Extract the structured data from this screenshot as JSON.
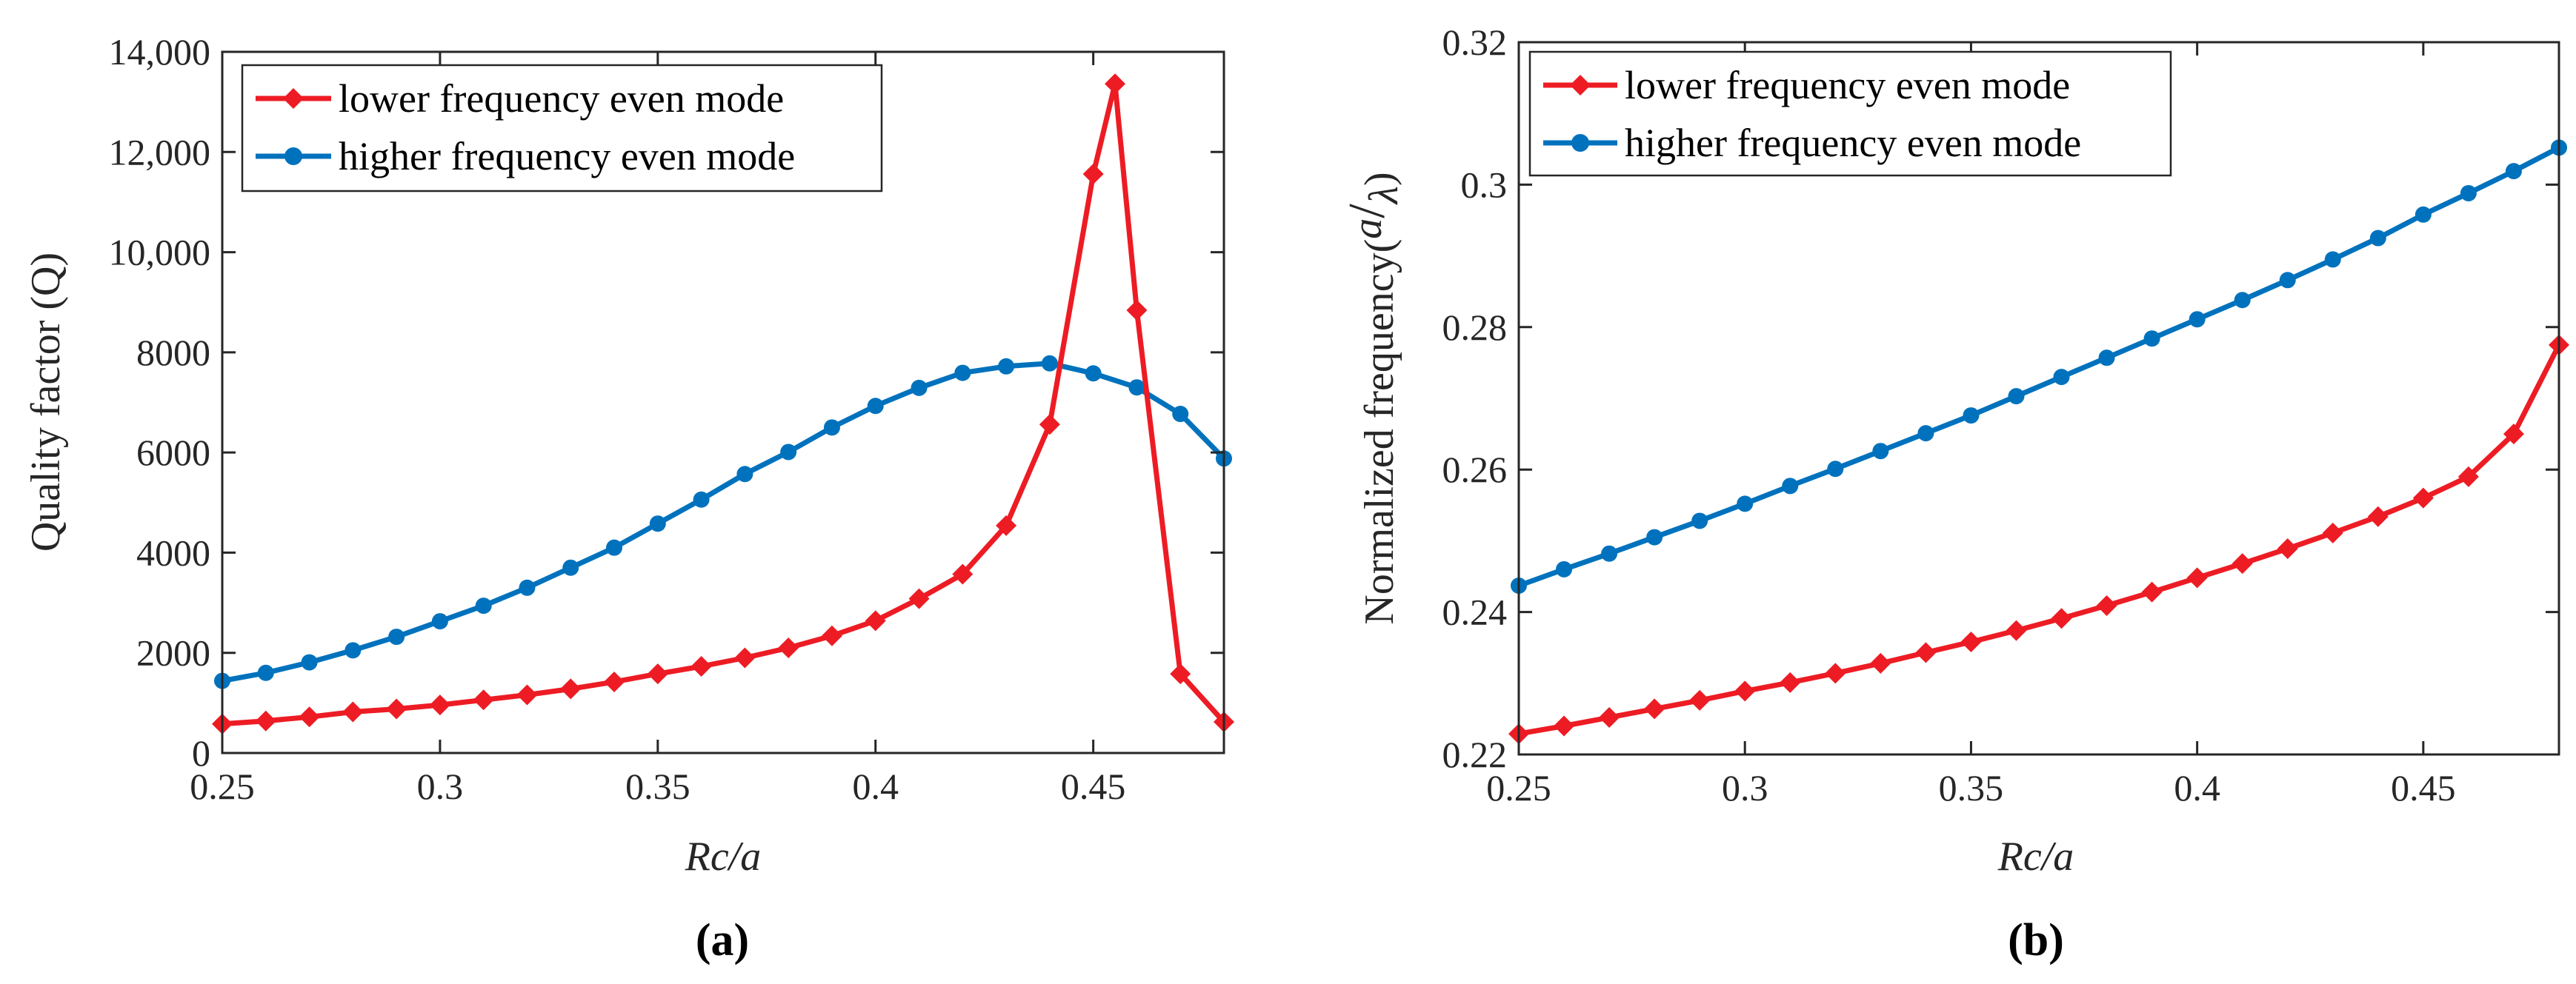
{
  "chart_data": [
    {
      "type": "line",
      "panel_label": {
        "open": "(",
        "letter": "a",
        "close": ")"
      },
      "xlabel": "Rc/a",
      "ylabel": "Quality factor (Q)",
      "xlim": [
        0.25,
        0.48
      ],
      "ylim": [
        0,
        14000
      ],
      "grid": false,
      "box": true,
      "legend_position": "top-left",
      "x_ticks": [
        0.25,
        0.3,
        0.35,
        0.4,
        0.45
      ],
      "x_tick_labels": [
        "0.25",
        "0.3",
        "0.35",
        "0.4",
        "0.45"
      ],
      "y_ticks": [
        0,
        2000,
        4000,
        6000,
        8000,
        10000,
        12000,
        14000
      ],
      "y_tick_labels": [
        "0",
        "2000",
        "4000",
        "6000",
        "8000",
        "10,000",
        "12,000",
        "14,000"
      ],
      "series": [
        {
          "name": "lower frequency even mode",
          "color": "#ed1c24",
          "marker": "diamond",
          "x": [
            0.25,
            0.26,
            0.27,
            0.28,
            0.29,
            0.3,
            0.31,
            0.32,
            0.33,
            0.34,
            0.35,
            0.36,
            0.37,
            0.38,
            0.39,
            0.4,
            0.41,
            0.42,
            0.43,
            0.44,
            0.45,
            0.455,
            0.46,
            0.47,
            0.48
          ],
          "y": [
            580,
            640,
            720,
            820,
            880,
            960,
            1060,
            1160,
            1280,
            1420,
            1580,
            1730,
            1900,
            2100,
            2340,
            2640,
            3080,
            3570,
            4540,
            6560,
            11560,
            13360,
            8840,
            1580,
            620
          ]
        },
        {
          "name": "higher frequency even mode",
          "color": "#0072bd",
          "marker": "circle",
          "x": [
            0.25,
            0.26,
            0.27,
            0.28,
            0.29,
            0.3,
            0.31,
            0.32,
            0.33,
            0.34,
            0.35,
            0.36,
            0.37,
            0.38,
            0.39,
            0.4,
            0.41,
            0.42,
            0.43,
            0.44,
            0.45,
            0.46,
            0.47,
            0.48
          ],
          "y": [
            1440,
            1600,
            1810,
            2050,
            2320,
            2630,
            2940,
            3300,
            3700,
            4100,
            4580,
            5060,
            5570,
            6010,
            6500,
            6930,
            7290,
            7590,
            7720,
            7780,
            7580,
            7300,
            6770,
            5880
          ]
        }
      ]
    },
    {
      "type": "line",
      "panel_label": {
        "open": "(",
        "letter": "b",
        "close": ")"
      },
      "xlabel": "Rc/a",
      "ylabel_prefix": "Normalized frequency",
      "ylabel_open": "(",
      "ylabel_num": "a",
      "ylabel_slash": "/",
      "ylabel_den": "λ",
      "ylabel_close": ")",
      "xlim": [
        0.25,
        0.48
      ],
      "ylim": [
        0.22,
        0.32
      ],
      "grid": false,
      "box": true,
      "legend_position": "top-left",
      "x_ticks": [
        0.25,
        0.3,
        0.35,
        0.4,
        0.45
      ],
      "x_tick_labels": [
        "0.25",
        "0.3",
        "0.35",
        "0.4",
        "0.45"
      ],
      "y_ticks": [
        0.22,
        0.24,
        0.26,
        0.28,
        0.3,
        0.32
      ],
      "y_tick_labels": [
        "0.22",
        "0.24",
        "0.26",
        "0.28",
        "0.3",
        "0.32"
      ],
      "series": [
        {
          "name": "lower frequency even mode",
          "color": "#ed1c24",
          "marker": "diamond",
          "x": [
            0.25,
            0.26,
            0.27,
            0.28,
            0.29,
            0.3,
            0.31,
            0.32,
            0.33,
            0.34,
            0.35,
            0.36,
            0.37,
            0.38,
            0.39,
            0.4,
            0.41,
            0.42,
            0.43,
            0.44,
            0.45,
            0.46,
            0.47,
            0.48
          ],
          "y": [
            0.2229,
            0.224,
            0.2252,
            0.2264,
            0.2276,
            0.2289,
            0.2301,
            0.2314,
            0.2328,
            0.2343,
            0.2358,
            0.2374,
            0.2391,
            0.2409,
            0.2428,
            0.2448,
            0.2468,
            0.2489,
            0.2511,
            0.2534,
            0.256,
            0.259,
            0.265,
            0.2775
          ]
        },
        {
          "name": "higher frequency even mode",
          "color": "#0072bd",
          "marker": "circle",
          "x": [
            0.25,
            0.26,
            0.27,
            0.28,
            0.29,
            0.3,
            0.31,
            0.32,
            0.33,
            0.34,
            0.35,
            0.36,
            0.37,
            0.38,
            0.39,
            0.4,
            0.41,
            0.42,
            0.43,
            0.44,
            0.45,
            0.46,
            0.47,
            0.48
          ],
          "y": [
            0.2437,
            0.246,
            0.2482,
            0.2505,
            0.2528,
            0.2552,
            0.2577,
            0.2601,
            0.2626,
            0.2651,
            0.2676,
            0.2703,
            0.273,
            0.2757,
            0.2784,
            0.2811,
            0.2838,
            0.2866,
            0.2895,
            0.2925,
            0.2958,
            0.2988,
            0.3019,
            0.3052
          ]
        }
      ]
    }
  ]
}
